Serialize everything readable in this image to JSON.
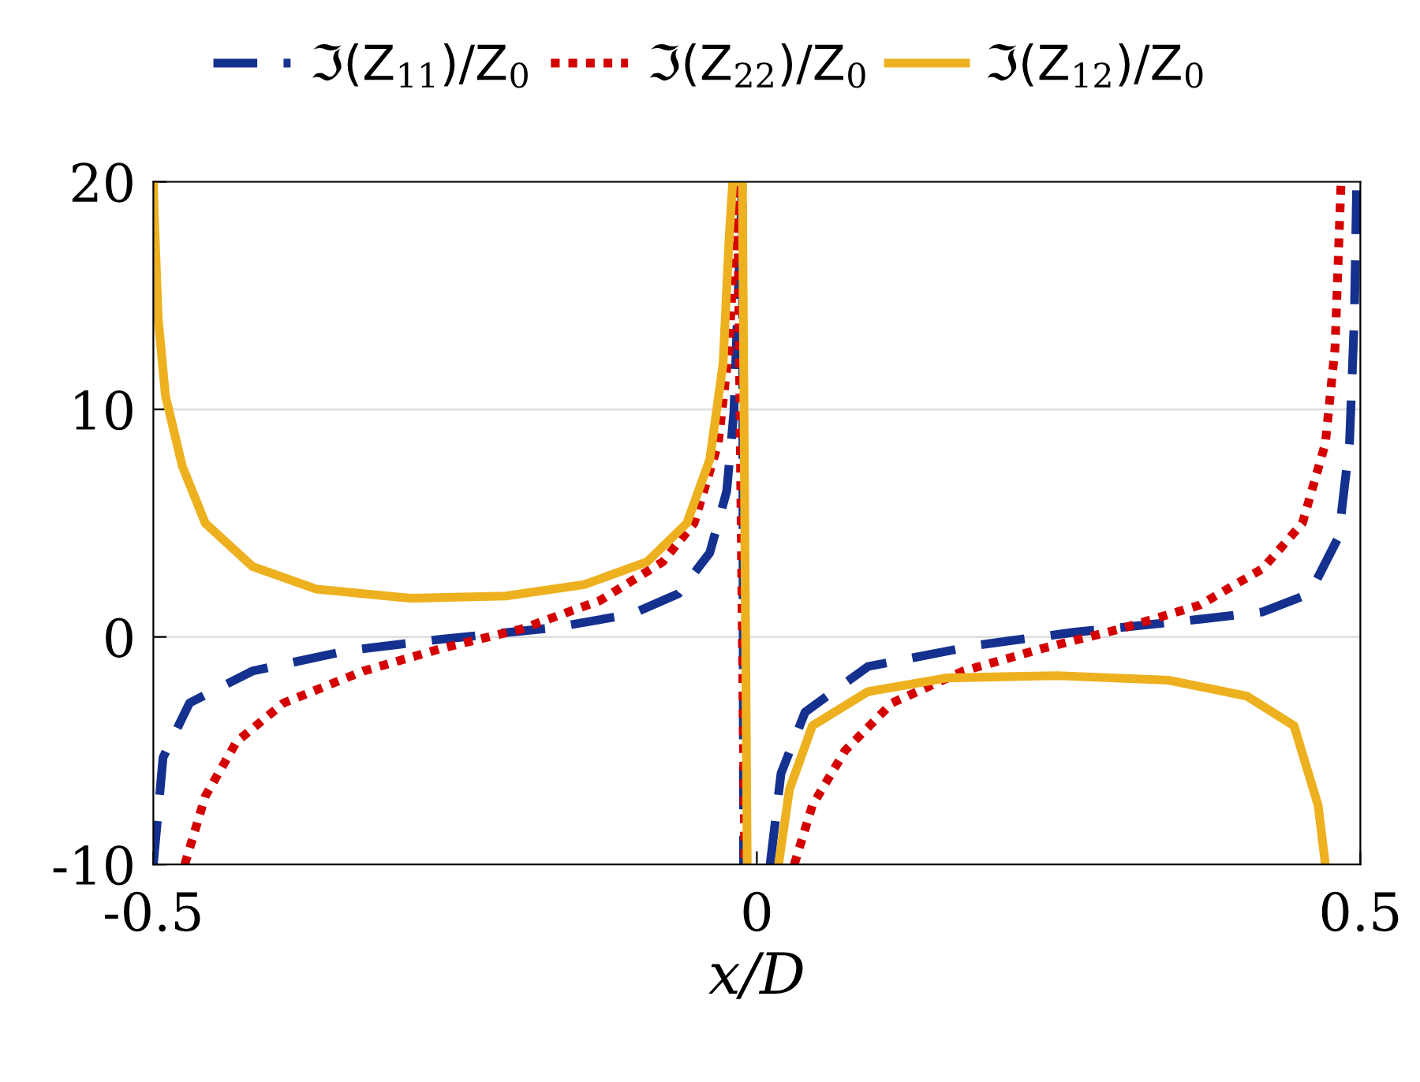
{
  "chart_data": {
    "type": "line",
    "xlabel": "x/D",
    "xlim": [
      -0.5,
      0.5
    ],
    "xticks": [
      -0.5,
      0,
      0.5
    ],
    "ylim": [
      -10,
      20
    ],
    "yticks": [
      -10,
      0,
      10,
      20
    ],
    "grid": "y",
    "legend": "top",
    "marker": "none",
    "series": [
      {
        "name": "ℑ(Z$_{11}$)/Z$_{0}$",
        "color": "#14318f",
        "line_style": "dashed",
        "x": [
          -0.5,
          -0.492,
          -0.47,
          -0.418,
          -0.339,
          -0.261,
          -0.169,
          -0.104,
          -0.065,
          -0.039,
          -0.025,
          -0.019,
          -0.012,
          -0.011,
          null,
          0.011,
          0.02,
          0.04,
          0.092,
          0.184,
          0.262,
          0.354,
          0.419,
          0.458,
          0.482,
          0.491,
          0.495,
          0.497
        ],
        "values": [
          -10,
          -5.3,
          -2.9,
          -1.5,
          -0.6,
          -0.1,
          0.4,
          1.0,
          1.9,
          3.7,
          6.4,
          9.9,
          20,
          -10,
          null,
          -10,
          -6,
          -3.3,
          -1.3,
          -0.35,
          0.2,
          0.7,
          1.1,
          1.9,
          4.4,
          8.5,
          14,
          20
        ]
      },
      {
        "name": "ℑ(Z$_{22}$)/Z$_{0}$",
        "color": "#d40000",
        "line_style": "dotted",
        "x": [
          -0.474,
          -0.457,
          -0.431,
          -0.392,
          -0.326,
          -0.261,
          -0.195,
          -0.13,
          -0.078,
          -0.052,
          -0.032,
          -0.023,
          -0.016,
          -0.01,
          null,
          0.031,
          0.046,
          0.073,
          0.112,
          0.171,
          0.237,
          0.301,
          0.367,
          0.419,
          0.452,
          0.471,
          0.479,
          0.484
        ],
        "values": [
          -10,
          -7,
          -4.6,
          -2.9,
          -1.5,
          -0.5,
          0.35,
          1.6,
          3.3,
          5,
          8.5,
          12.7,
          20,
          -10,
          null,
          -10,
          -7.4,
          -5,
          -2.9,
          -1.5,
          -0.5,
          0.35,
          1.4,
          3,
          5,
          8.5,
          12.7,
          20
        ]
      },
      {
        "name": "ℑ(Z$_{12}$)/Z$_{0}$",
        "color": "#edb120",
        "line_style": "solid",
        "x": [
          -0.5,
          -0.499,
          -0.496,
          -0.49,
          -0.476,
          -0.457,
          -0.418,
          -0.365,
          -0.287,
          -0.208,
          -0.143,
          -0.091,
          -0.058,
          -0.039,
          -0.028,
          -0.023,
          -0.02,
          -0.012,
          -0.008,
          null,
          0.018,
          0.027,
          0.046,
          0.092,
          0.158,
          0.249,
          0.341,
          0.406,
          0.445,
          0.465,
          0.471
        ],
        "values": [
          20,
          18.2,
          14,
          10.6,
          7.5,
          5,
          3.1,
          2.1,
          1.7,
          1.8,
          2.3,
          3.3,
          5,
          7.8,
          12,
          17.5,
          20,
          20,
          -10,
          null,
          -10,
          -6.7,
          -3.9,
          -2.4,
          -1.8,
          -1.7,
          -1.9,
          -2.6,
          -3.9,
          -7.4,
          -10
        ]
      }
    ]
  }
}
